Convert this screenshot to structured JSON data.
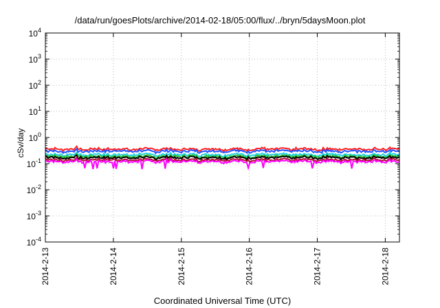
{
  "chart_data": {
    "type": "line",
    "title": "/data/run/goesPlots/archive/2014-02-18/05:00/flux/../bryn/5daysMoon.plot",
    "xlabel": "Coordinated Universal Time (UTC)",
    "ylabel": "cSv/day",
    "yscale": "log",
    "ylim": [
      0.0001,
      10000
    ],
    "xlim": [
      "2014-02-13 00:00",
      "2014-02-18 05:00"
    ],
    "x_ticks": [
      "2014-2-13",
      "2014-2-14",
      "2014-2-15",
      "2014-2-16",
      "2014-2-17",
      "2014-2-18"
    ],
    "y_ticks": [
      {
        "base": "10",
        "exp": "-4",
        "value": 0.0001
      },
      {
        "base": "10",
        "exp": "-3",
        "value": 0.001
      },
      {
        "base": "10",
        "exp": "-2",
        "value": 0.01
      },
      {
        "base": "10",
        "exp": "-1",
        "value": 0.1
      },
      {
        "base": "10",
        "exp": "0",
        "value": 1
      },
      {
        "base": "10",
        "exp": "1",
        "value": 10
      },
      {
        "base": "10",
        "exp": "2",
        "value": 100
      },
      {
        "base": "10",
        "exp": "3",
        "value": 1000
      },
      {
        "base": "10",
        "exp": "4",
        "value": 10000
      }
    ],
    "grid": true,
    "series": [
      {
        "color": "#ff2020",
        "level": 0.36
      },
      {
        "color": "#2050ff",
        "level": 0.3
      },
      {
        "color": "#20d0e0",
        "level": 0.22
      },
      {
        "color": "#30c030",
        "level": 0.19
      },
      {
        "color": "#000000",
        "level": 0.17
      },
      {
        "color": "#b01030",
        "level": 0.14
      },
      {
        "color": "#ff00ff",
        "level": 0.12
      }
    ]
  }
}
